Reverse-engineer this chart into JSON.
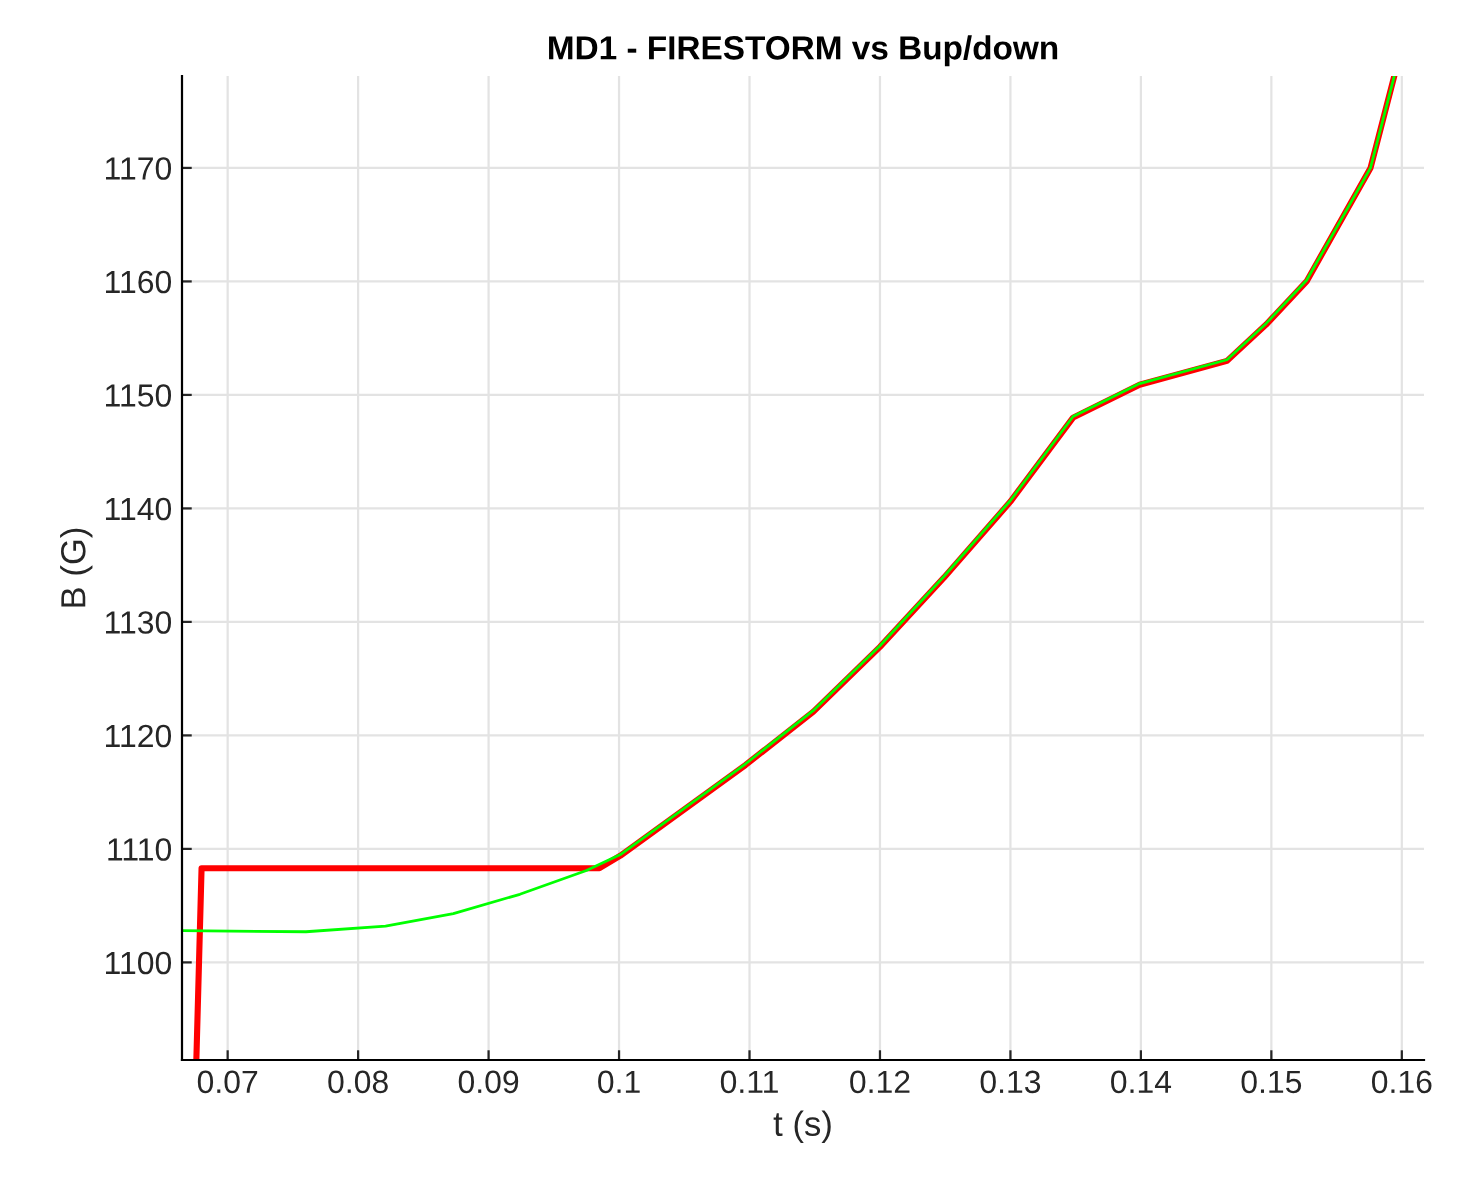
{
  "chart_data": {
    "type": "line",
    "title": "MD1 - FIRESTORM vs Bup/down",
    "xlabel": "t (s)",
    "ylabel": "B (G)",
    "xlim": [
      0.0665,
      0.1617
    ],
    "ylim": [
      1091.4,
      1178.1
    ],
    "xticks": [
      0.07,
      0.08,
      0.09,
      {
        "value": 0.1,
        "label": "0.1"
      },
      0.11,
      0.12,
      0.13,
      0.14,
      0.15,
      0.16
    ],
    "yticks": [
      1100,
      1110,
      1120,
      1130,
      1140,
      1150,
      1160,
      1170
    ],
    "grid": true,
    "line_style": "solid",
    "marker": "none",
    "series": [
      {
        "color": "#ff0000",
        "x": [
          0.0676,
          0.068,
          0.0985,
          0.1001,
          0.1097,
          0.1149,
          0.12,
          0.1249,
          0.13,
          0.1348,
          0.1399,
          0.1466,
          0.1496,
          0.1527,
          0.1576,
          0.1594
        ],
        "values": [
          1091.4,
          1108.3,
          1108.3,
          1109.4,
          1117.4,
          1122.1,
          1127.8,
          1133.9,
          1140.6,
          1148.0,
          1150.9,
          1153.0,
          1156.2,
          1160.0,
          1170,
          1178
        ]
      },
      {
        "color": "#00ff00",
        "x": [
          0.0665,
          0.076,
          0.0821,
          0.0873,
          0.0924,
          0.0975,
          0.1001,
          0.1097,
          0.1149,
          0.12,
          0.1249,
          0.13,
          0.1348,
          0.1399,
          0.1466,
          0.1496,
          0.1527,
          0.1576,
          0.1594
        ],
        "values": [
          1102.8,
          1102.7,
          1103.2,
          1104.3,
          1106.0,
          1108.1,
          1109.5,
          1117.5,
          1122.2,
          1127.9,
          1134.0,
          1140.7,
          1148.1,
          1151.0,
          1153.1,
          1156.3,
          1160.1,
          1170,
          1178
        ]
      }
    ]
  }
}
